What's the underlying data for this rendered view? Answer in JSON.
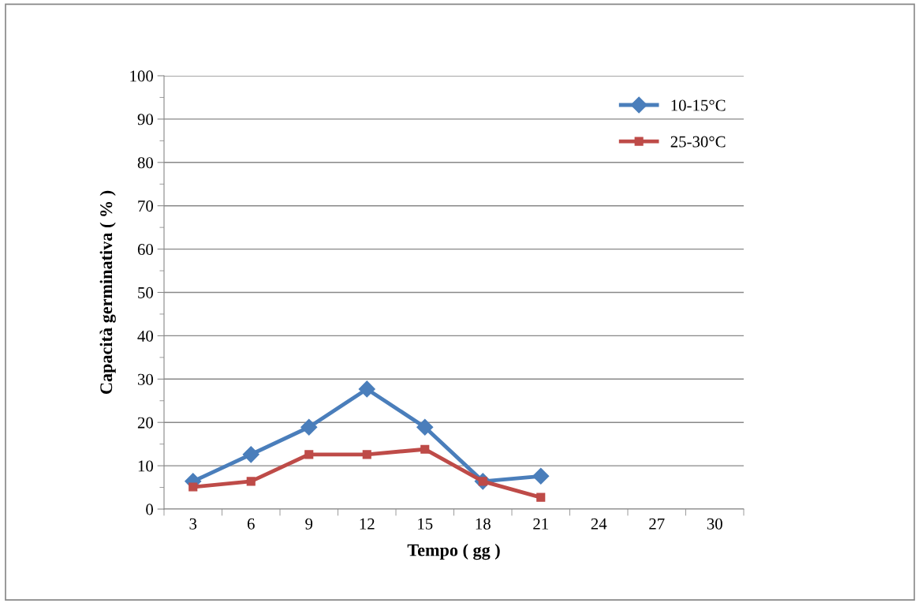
{
  "chart_data": {
    "type": "line",
    "xlabel": "Tempo ( gg )",
    "ylabel": "Capacità germinativa ( % )",
    "categories": [
      "3",
      "6",
      "9",
      "12",
      "15",
      "18",
      "21",
      "24",
      "27",
      "30"
    ],
    "series": [
      {
        "name": "10-15°C",
        "color": "#4a7ebb",
        "marker": "diamond",
        "values": [
          6.4,
          12.6,
          18.9,
          27.7,
          18.9,
          6.4,
          7.6,
          null,
          null,
          null
        ]
      },
      {
        "name": "25-30°C",
        "color": "#be4b48",
        "marker": "square",
        "values": [
          5.1,
          6.4,
          12.6,
          12.6,
          13.8,
          6.4,
          2.7,
          null,
          null,
          null
        ]
      }
    ],
    "ylim": [
      0,
      100
    ],
    "yticks": [
      0,
      {
        "value": 5,
        "label": null
      },
      10,
      {
        "value": 15,
        "label": null
      },
      20,
      {
        "value": 25,
        "label": null
      },
      30,
      {
        "value": 35,
        "label": null
      },
      40,
      {
        "value": 45,
        "label": null
      },
      50,
      {
        "value": 55,
        "label": null
      },
      60,
      {
        "value": 65,
        "label": null
      },
      70,
      {
        "value": 75,
        "label": null
      },
      80,
      {
        "value": 85,
        "label": null
      },
      90,
      {
        "value": 95,
        "label": null
      },
      100
    ],
    "grid": "y",
    "legend": "top right"
  }
}
